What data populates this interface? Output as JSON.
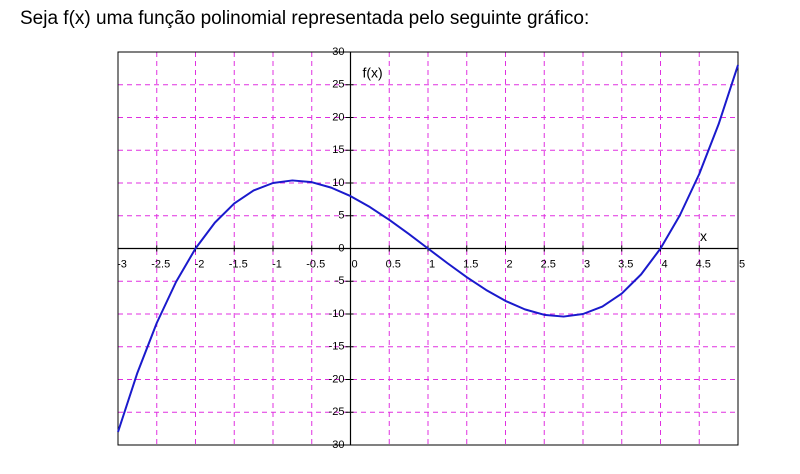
{
  "chart_data": {
    "type": "line",
    "title": "Seja f(x) uma função polinomial representada pelo seguinte gráfico:",
    "xlabel": "x",
    "ylabel": "f(x)",
    "x": [
      -3,
      -2.75,
      -2.5,
      -2.25,
      -2,
      -1.75,
      -1.5,
      -1.25,
      -1,
      -0.75,
      -0.5,
      -0.25,
      0,
      0.25,
      0.5,
      0.75,
      1,
      1.25,
      1.5,
      1.75,
      2,
      2.25,
      2.5,
      2.75,
      3,
      3.25,
      3.5,
      3.75,
      4,
      4.25,
      4.5,
      4.75,
      5
    ],
    "series": [
      {
        "color": "#1a1acc",
        "values": [
          -28,
          -18.984375,
          -11.375,
          -5.078125,
          0,
          3.953125,
          6.875,
          8.859375,
          10,
          10.390625,
          10.125,
          9.296875,
          8,
          6.328125,
          4.375,
          2.234375,
          0,
          -2.234375,
          -4.375,
          -6.328125,
          -8,
          -9.296875,
          -10.125,
          -10.390625,
          -10,
          -8.859375,
          -6.875,
          -3.953125,
          0,
          5.078125,
          11.375,
          18.984375,
          28
        ]
      }
    ],
    "xlim": [
      -3,
      5
    ],
    "ylim": [
      -30,
      30
    ],
    "xticks": [
      -3,
      -2.5,
      -2,
      -1.5,
      -1,
      -0.5,
      0,
      0.5,
      1,
      1.5,
      2,
      2.5,
      3,
      3.5,
      4,
      4.5,
      5
    ],
    "yticks": [
      -30,
      -25,
      -20,
      -15,
      -10,
      -5,
      0,
      5,
      10,
      15,
      20,
      25,
      30
    ],
    "grid": true,
    "grid_color": "#e030e0"
  }
}
